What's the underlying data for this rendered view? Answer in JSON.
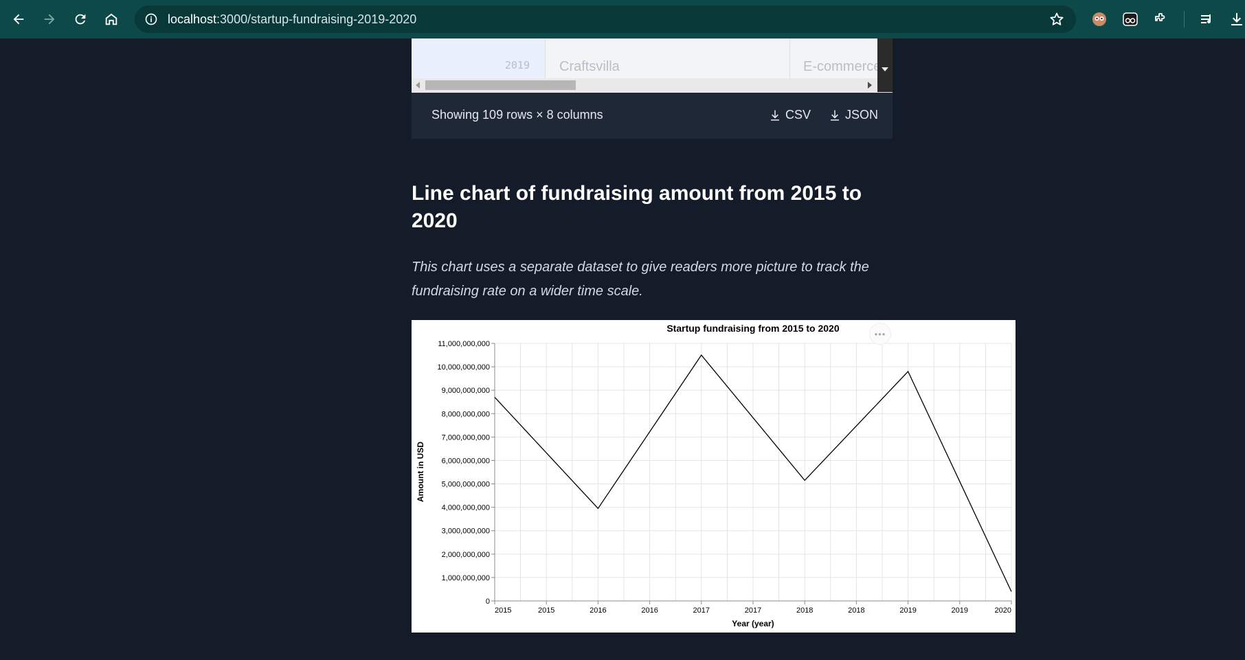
{
  "browser": {
    "url_host": "localhost",
    "url_path": ":3000/startup-fundraising-2019-2020"
  },
  "table_fragment": {
    "row": {
      "year": "2019",
      "startup": "Craftsvilla",
      "industry": "E-commerce"
    }
  },
  "table_footer": {
    "rows_label": "Showing 109 rows × 8 columns",
    "csv_label": "CSV",
    "json_label": "JSON"
  },
  "section": {
    "heading": "Line chart of fundraising amount from 2015 to 2020",
    "description": "This chart uses a separate dataset to give readers more picture to track the fundraising rate on a wider time scale."
  },
  "chart_data": {
    "type": "line",
    "title": "Startup fundraising from 2015 to 2020",
    "xlabel": "Year (year)",
    "ylabel": "Amount in USD",
    "x": [
      2015,
      2016,
      2017,
      2018,
      2019,
      2020
    ],
    "values": [
      8700000000,
      3950000000,
      10500000000,
      5150000000,
      9800000000,
      400000000
    ],
    "ylim": [
      0,
      11000000000
    ],
    "yticks": [
      0,
      1000000000,
      2000000000,
      3000000000,
      4000000000,
      5000000000,
      6000000000,
      7000000000,
      8000000000,
      9000000000,
      10000000000,
      11000000000
    ],
    "ytick_labels": [
      "0",
      "1,000,000,000",
      "2,000,000,000",
      "3,000,000,000",
      "4,000,000,000",
      "5,000,000,000",
      "6,000,000,000",
      "7,000,000,000",
      "8,000,000,000",
      "9,000,000,000",
      "10,000,000,000",
      "11,000,000,000"
    ],
    "xticks": [
      2015,
      2015.5,
      2016,
      2016.5,
      2017,
      2017.5,
      2018,
      2018.5,
      2019,
      2019.5,
      2020
    ],
    "xtick_labels": [
      "2015",
      "2015",
      "2016",
      "2016",
      "2017",
      "2017",
      "2018",
      "2018",
      "2019",
      "2019",
      "2020"
    ],
    "grid": true,
    "line_color": "#000000",
    "menu_label": "•••"
  }
}
